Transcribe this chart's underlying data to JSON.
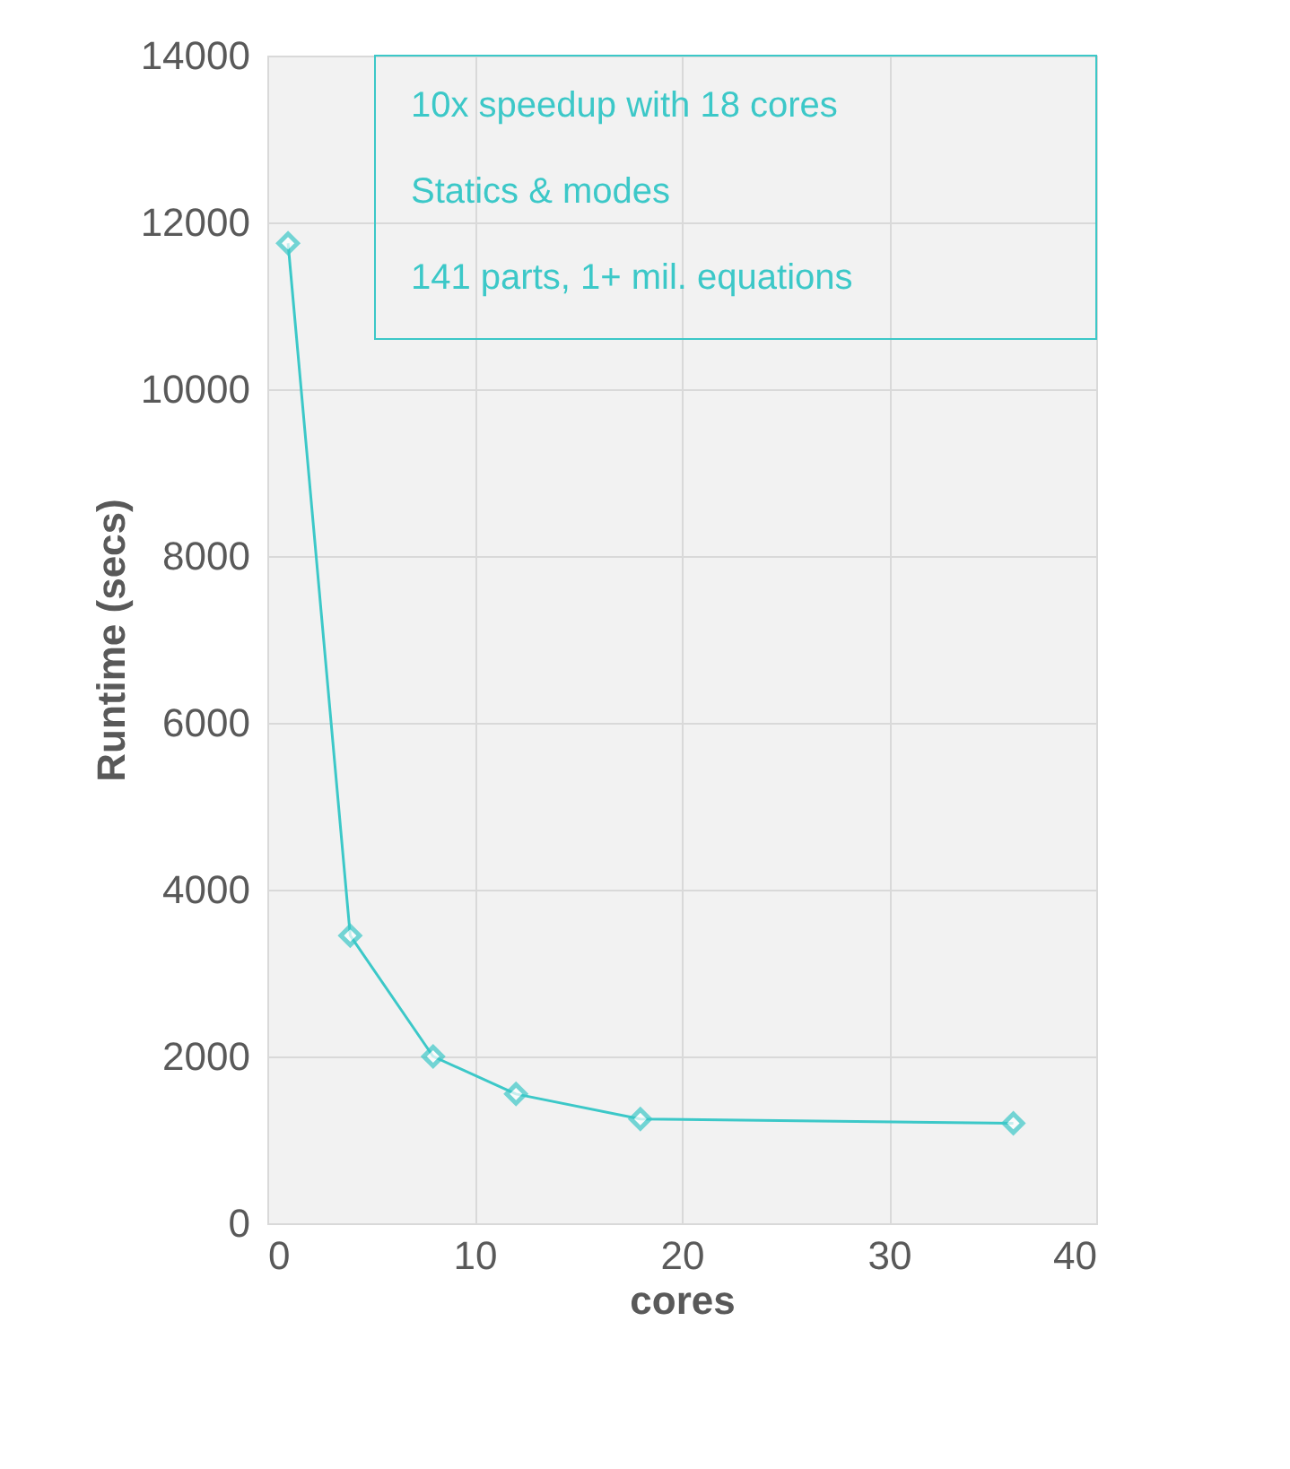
{
  "chart_data": {
    "type": "line",
    "xlabel": "cores",
    "ylabel": "Runtime (secs)",
    "x": [
      1,
      4,
      8,
      12,
      18,
      36
    ],
    "series": [
      {
        "color": "#3cc8c8",
        "values": [
          11750,
          3450,
          2000,
          1550,
          1250,
          1200
        ]
      }
    ],
    "xlim": [
      0,
      40
    ],
    "xticks": [
      0,
      10,
      20,
      30,
      40
    ],
    "ylim": [
      0,
      14000
    ],
    "yticks": [
      0,
      2000,
      4000,
      6000,
      8000,
      10000,
      12000,
      14000
    ],
    "grid": true,
    "marker": "diamond",
    "line_style": "solid",
    "legend": false,
    "annotations": [
      "10x speedup with 18 cores",
      "Statics & modes",
      "141 parts, 1+ mil. equations"
    ]
  }
}
